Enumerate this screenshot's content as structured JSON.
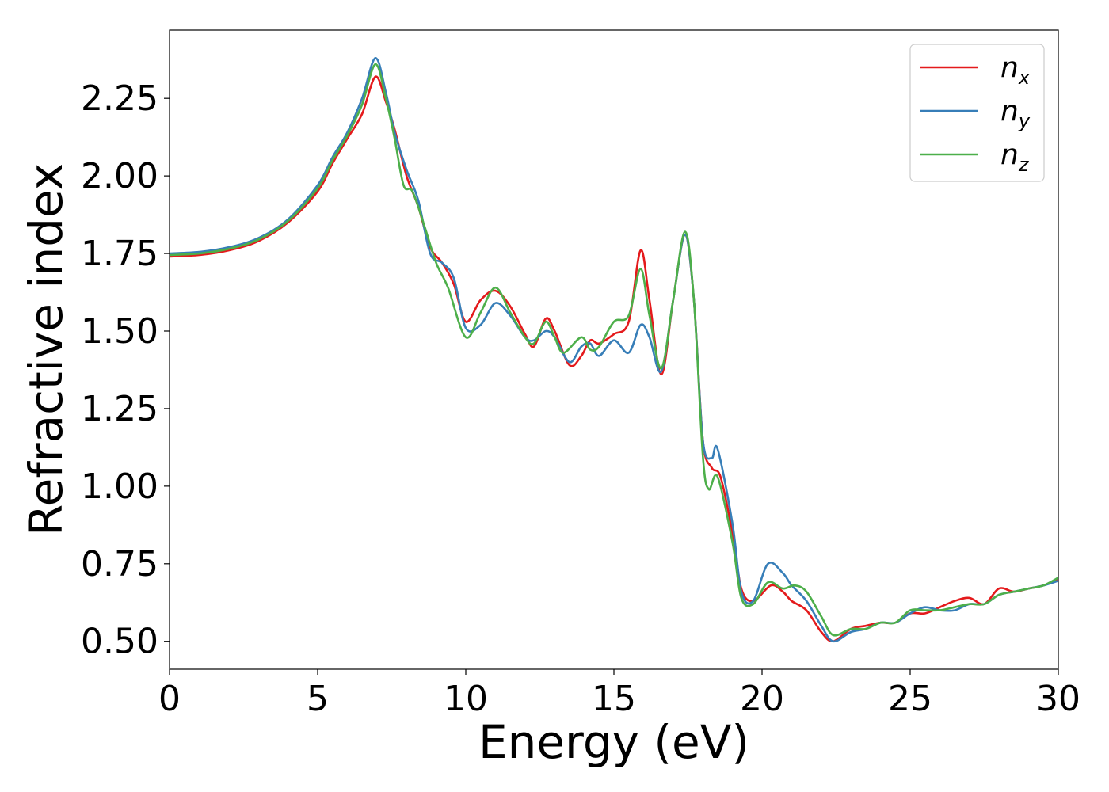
{
  "chart_data": {
    "type": "line",
    "xlabel": "Energy (eV)",
    "ylabel": "Refractive index",
    "xlim": [
      0,
      30
    ],
    "ylim": [
      0.41,
      2.47
    ],
    "x_ticks": [
      "0",
      "5",
      "10",
      "15",
      "20",
      "25",
      "30"
    ],
    "y_ticks": [
      "0.50",
      "0.75",
      "1.00",
      "1.25",
      "1.50",
      "1.75",
      "2.00",
      "2.25"
    ],
    "grid": false,
    "legend_position": "top-right",
    "series": [
      {
        "name": "n",
        "subscript": "x",
        "color": "#e41a1c",
        "points": [
          [
            0,
            1.74
          ],
          [
            1,
            1.745
          ],
          [
            2,
            1.76
          ],
          [
            3,
            1.79
          ],
          [
            4,
            1.85
          ],
          [
            5,
            1.95
          ],
          [
            5.5,
            2.04
          ],
          [
            6,
            2.12
          ],
          [
            6.5,
            2.2
          ],
          [
            6.95,
            2.32
          ],
          [
            7.3,
            2.24
          ],
          [
            7.6,
            2.15
          ],
          [
            8.0,
            2.0
          ],
          [
            8.4,
            1.9
          ],
          [
            8.8,
            1.77
          ],
          [
            9.2,
            1.72
          ],
          [
            9.6,
            1.65
          ],
          [
            10.0,
            1.53
          ],
          [
            10.5,
            1.6
          ],
          [
            11.0,
            1.63
          ],
          [
            11.5,
            1.58
          ],
          [
            12.0,
            1.49
          ],
          [
            12.3,
            1.45
          ],
          [
            12.7,
            1.54
          ],
          [
            13.0,
            1.5
          ],
          [
            13.5,
            1.39
          ],
          [
            13.9,
            1.42
          ],
          [
            14.2,
            1.47
          ],
          [
            14.5,
            1.46
          ],
          [
            15.0,
            1.49
          ],
          [
            15.5,
            1.53
          ],
          [
            15.9,
            1.76
          ],
          [
            16.2,
            1.6
          ],
          [
            16.6,
            1.36
          ],
          [
            17.0,
            1.6
          ],
          [
            17.4,
            1.81
          ],
          [
            17.7,
            1.6
          ],
          [
            18.0,
            1.15
          ],
          [
            18.3,
            1.06
          ],
          [
            18.6,
            1.03
          ],
          [
            19.0,
            0.85
          ],
          [
            19.3,
            0.67
          ],
          [
            19.7,
            0.63
          ],
          [
            20.3,
            0.68
          ],
          [
            20.7,
            0.66
          ],
          [
            21.0,
            0.63
          ],
          [
            21.5,
            0.6
          ],
          [
            22.0,
            0.53
          ],
          [
            22.4,
            0.5
          ],
          [
            23.0,
            0.54
          ],
          [
            23.5,
            0.55
          ],
          [
            24.0,
            0.56
          ],
          [
            24.5,
            0.56
          ],
          [
            25.0,
            0.59
          ],
          [
            25.5,
            0.59
          ],
          [
            26.0,
            0.61
          ],
          [
            26.5,
            0.63
          ],
          [
            27.0,
            0.64
          ],
          [
            27.5,
            0.62
          ],
          [
            28.0,
            0.67
          ],
          [
            28.5,
            0.66
          ],
          [
            29.0,
            0.67
          ],
          [
            29.5,
            0.68
          ],
          [
            30.0,
            0.7
          ]
        ]
      },
      {
        "name": "n",
        "subscript": "y",
        "color": "#377eb8",
        "points": [
          [
            0,
            1.75
          ],
          [
            1,
            1.755
          ],
          [
            2,
            1.77
          ],
          [
            3,
            1.8
          ],
          [
            4,
            1.86
          ],
          [
            5,
            1.97
          ],
          [
            5.5,
            2.06
          ],
          [
            6,
            2.14
          ],
          [
            6.5,
            2.25
          ],
          [
            6.95,
            2.38
          ],
          [
            7.3,
            2.27
          ],
          [
            7.6,
            2.14
          ],
          [
            8.0,
            2.02
          ],
          [
            8.4,
            1.92
          ],
          [
            8.8,
            1.75
          ],
          [
            9.2,
            1.72
          ],
          [
            9.6,
            1.67
          ],
          [
            10.0,
            1.51
          ],
          [
            10.5,
            1.52
          ],
          [
            11.0,
            1.59
          ],
          [
            11.5,
            1.55
          ],
          [
            12.0,
            1.48
          ],
          [
            12.3,
            1.47
          ],
          [
            12.7,
            1.5
          ],
          [
            13.0,
            1.48
          ],
          [
            13.5,
            1.4
          ],
          [
            13.9,
            1.45
          ],
          [
            14.2,
            1.46
          ],
          [
            14.5,
            1.42
          ],
          [
            15.0,
            1.47
          ],
          [
            15.5,
            1.43
          ],
          [
            15.9,
            1.52
          ],
          [
            16.2,
            1.48
          ],
          [
            16.6,
            1.37
          ],
          [
            17.0,
            1.6
          ],
          [
            17.4,
            1.81
          ],
          [
            17.7,
            1.6
          ],
          [
            18.0,
            1.15
          ],
          [
            18.3,
            1.09
          ],
          [
            18.5,
            1.12
          ],
          [
            19.0,
            0.88
          ],
          [
            19.3,
            0.66
          ],
          [
            19.7,
            0.63
          ],
          [
            20.2,
            0.75
          ],
          [
            20.7,
            0.72
          ],
          [
            21.0,
            0.68
          ],
          [
            21.5,
            0.63
          ],
          [
            22.0,
            0.55
          ],
          [
            22.4,
            0.5
          ],
          [
            23.0,
            0.53
          ],
          [
            23.5,
            0.54
          ],
          [
            24.0,
            0.56
          ],
          [
            24.5,
            0.56
          ],
          [
            25.0,
            0.59
          ],
          [
            25.5,
            0.61
          ],
          [
            26.0,
            0.6
          ],
          [
            26.5,
            0.6
          ],
          [
            27.0,
            0.62
          ],
          [
            27.5,
            0.62
          ],
          [
            28.0,
            0.65
          ],
          [
            28.5,
            0.66
          ],
          [
            29.0,
            0.67
          ],
          [
            29.5,
            0.68
          ],
          [
            30.0,
            0.695
          ]
        ]
      },
      {
        "name": "n",
        "subscript": "z",
        "color": "#4daf4a",
        "points": [
          [
            0,
            1.745
          ],
          [
            1,
            1.75
          ],
          [
            2,
            1.765
          ],
          [
            3,
            1.795
          ],
          [
            4,
            1.855
          ],
          [
            5,
            1.96
          ],
          [
            5.5,
            2.05
          ],
          [
            6,
            2.13
          ],
          [
            6.5,
            2.23
          ],
          [
            6.95,
            2.36
          ],
          [
            7.3,
            2.25
          ],
          [
            7.6,
            2.12
          ],
          [
            7.9,
            1.97
          ],
          [
            8.2,
            1.95
          ],
          [
            8.6,
            1.84
          ],
          [
            9.0,
            1.72
          ],
          [
            9.4,
            1.64
          ],
          [
            10.0,
            1.48
          ],
          [
            10.5,
            1.56
          ],
          [
            11.0,
            1.64
          ],
          [
            11.5,
            1.56
          ],
          [
            12.0,
            1.48
          ],
          [
            12.3,
            1.46
          ],
          [
            12.7,
            1.53
          ],
          [
            13.0,
            1.48
          ],
          [
            13.3,
            1.43
          ],
          [
            13.9,
            1.48
          ],
          [
            14.2,
            1.44
          ],
          [
            14.5,
            1.45
          ],
          [
            15.0,
            1.53
          ],
          [
            15.5,
            1.55
          ],
          [
            15.9,
            1.7
          ],
          [
            16.2,
            1.55
          ],
          [
            16.6,
            1.38
          ],
          [
            17.0,
            1.6
          ],
          [
            17.4,
            1.82
          ],
          [
            17.7,
            1.6
          ],
          [
            18.0,
            1.1
          ],
          [
            18.2,
            0.99
          ],
          [
            18.5,
            1.03
          ],
          [
            19.0,
            0.82
          ],
          [
            19.3,
            0.64
          ],
          [
            19.7,
            0.62
          ],
          [
            20.2,
            0.69
          ],
          [
            20.7,
            0.67
          ],
          [
            21.1,
            0.68
          ],
          [
            21.5,
            0.66
          ],
          [
            22.0,
            0.58
          ],
          [
            22.4,
            0.52
          ],
          [
            23.0,
            0.54
          ],
          [
            23.5,
            0.54
          ],
          [
            24.0,
            0.56
          ],
          [
            24.5,
            0.56
          ],
          [
            25.0,
            0.6
          ],
          [
            25.5,
            0.6
          ],
          [
            26.0,
            0.6
          ],
          [
            26.5,
            0.61
          ],
          [
            27.0,
            0.62
          ],
          [
            27.5,
            0.62
          ],
          [
            28.0,
            0.65
          ],
          [
            28.5,
            0.66
          ],
          [
            29.0,
            0.67
          ],
          [
            29.5,
            0.68
          ],
          [
            30.0,
            0.705
          ]
        ]
      }
    ]
  }
}
